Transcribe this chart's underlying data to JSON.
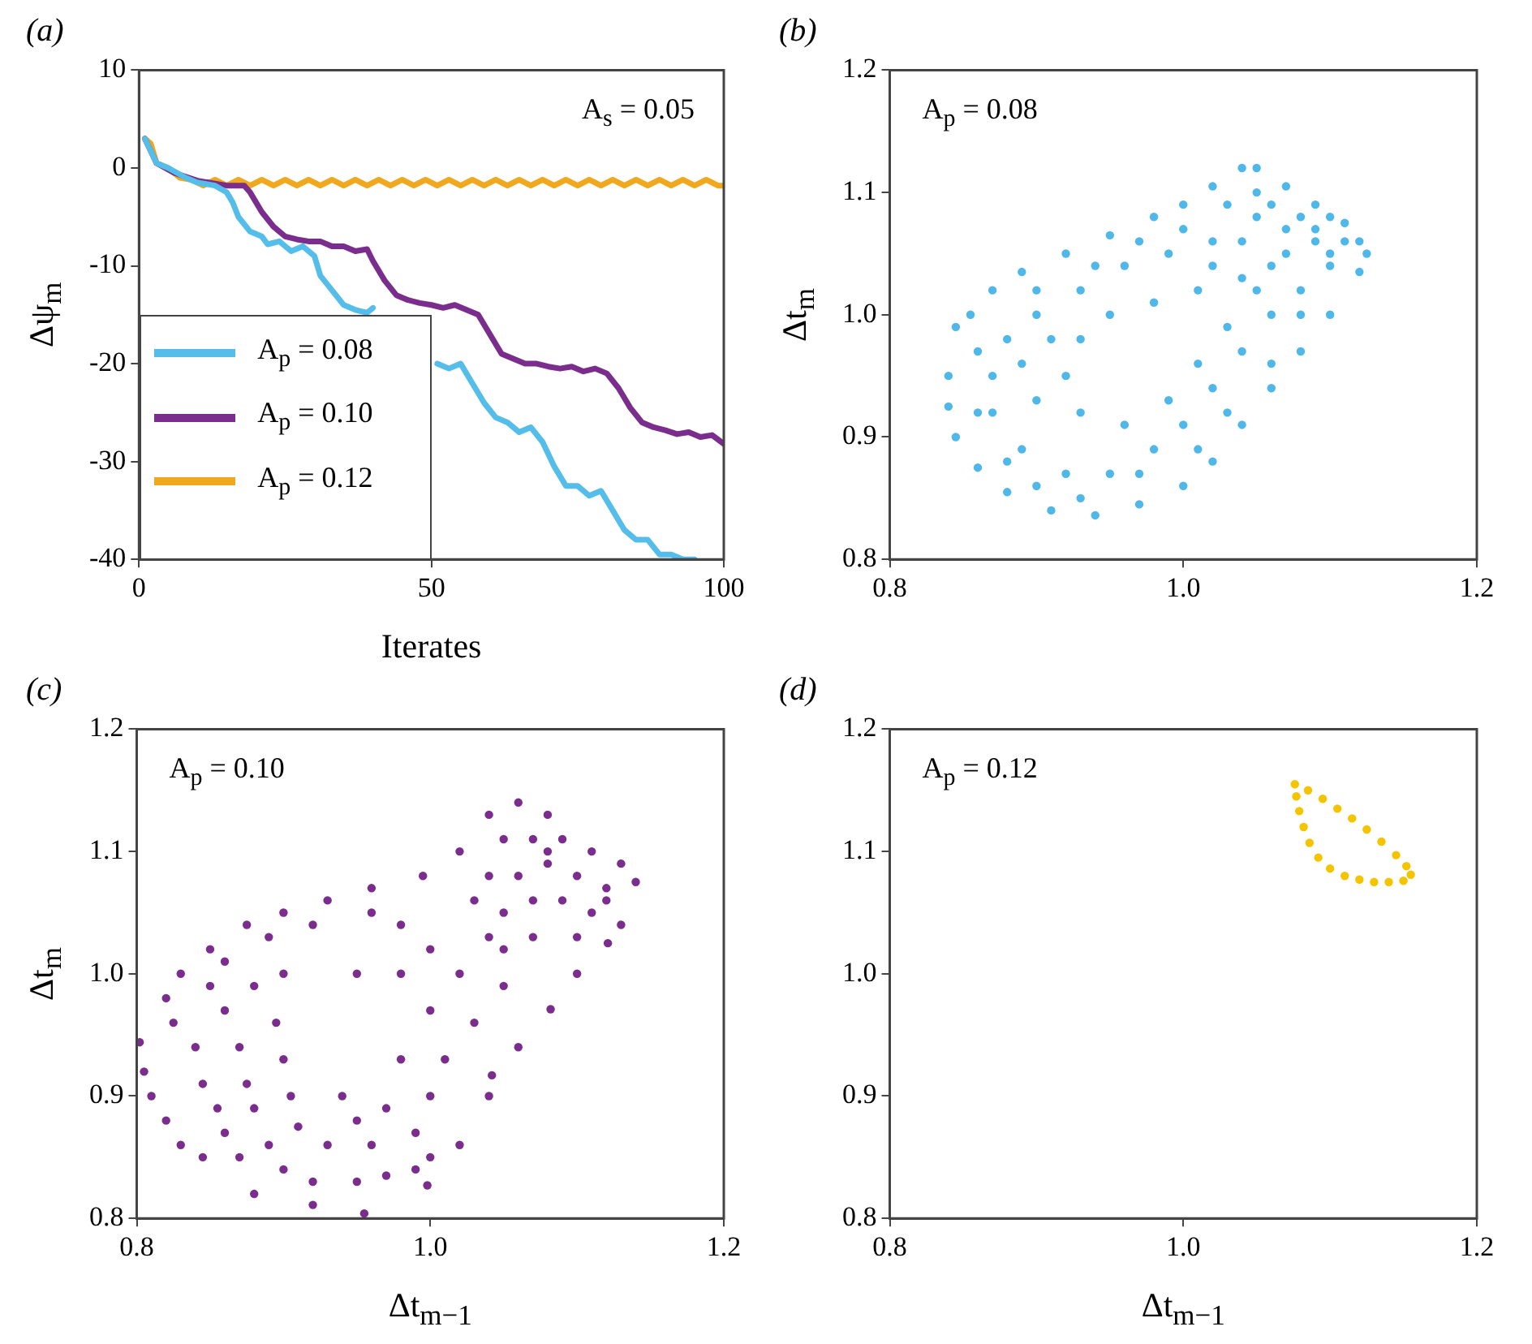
{
  "chart_data": [
    {
      "type": "line",
      "title": "(a)",
      "xlabel": "Iterates",
      "ylabel": "Δψ$_{m}$",
      "annotations": [
        "A$_{s}$ = 0.05"
      ],
      "xlim": [
        0,
        100
      ],
      "xticks": [
        0,
        50,
        100
      ],
      "ylim": [
        -40,
        10
      ],
      "yticks": [
        -40,
        -30,
        -20,
        -10,
        0,
        10
      ],
      "legend": "bottom left",
      "series": [
        {
          "name": "A$_{p}$ = 0.08",
          "color": "#55bde9",
          "x": [
            1,
            3,
            5,
            8,
            10,
            13,
            15,
            16,
            17,
            19,
            21,
            22,
            24,
            26,
            28,
            30,
            31,
            33,
            35,
            37,
            39,
            40,
            42,
            45,
            48,
            51,
            53,
            55,
            57,
            59,
            61,
            63,
            65,
            67,
            69,
            71,
            73,
            75,
            77,
            79,
            81,
            83,
            85,
            87,
            89,
            91,
            93,
            95
          ],
          "values": [
            3,
            0.5,
            0,
            -1,
            -1.5,
            -1.8,
            -2.5,
            -3.5,
            -5,
            -6.5,
            -7,
            -7.8,
            -7.5,
            -8.5,
            -8,
            -9,
            -11,
            -12.5,
            -14,
            -14.5,
            -14.8,
            -14.3,
            null,
            null,
            null,
            -20,
            -20.5,
            -20,
            -22,
            -24,
            -25.5,
            -26,
            -27,
            -26.5,
            -28,
            -30.5,
            -32.5,
            -32.5,
            -33.5,
            -33,
            -35,
            -37,
            -38,
            -38,
            -39.5,
            -39.5,
            -40,
            -40
          ]
        },
        {
          "name": "A$_{p}$ = 0.10",
          "color": "#7b2d8e",
          "x": [
            1,
            3,
            6,
            10,
            15,
            18,
            19,
            21,
            23,
            25,
            27,
            29,
            31,
            33,
            35,
            37,
            39,
            40,
            42,
            44,
            46,
            48,
            50,
            52,
            54,
            56,
            58,
            60,
            62,
            64,
            66,
            68,
            70,
            72,
            74,
            76,
            78,
            80,
            82,
            84,
            86,
            88,
            90,
            92,
            94,
            96,
            98,
            100
          ],
          "values": [
            3,
            0.5,
            -0.5,
            -1.3,
            -1.8,
            -1.8,
            -2.5,
            -4.5,
            -6,
            -7,
            -7.3,
            -7.5,
            -7.5,
            -8,
            -8,
            -8.5,
            -8.3,
            -9.5,
            -11.5,
            -13,
            -13.5,
            -13.8,
            -14,
            -14.3,
            -14,
            -14.5,
            -15,
            -17,
            -19,
            -19.5,
            -20,
            -20,
            -20.3,
            -20.5,
            -20.3,
            -20.8,
            -20.5,
            -21,
            -22.5,
            -24.5,
            -26,
            -26.5,
            -26.8,
            -27.2,
            -27,
            -27.5,
            -27.3,
            -28.2
          ]
        },
        {
          "name": "A$_{p}$ = 0.12",
          "color": "#f0a81e",
          "x": [
            1,
            2,
            3,
            5,
            7,
            9,
            11,
            13,
            15,
            17,
            19,
            21,
            23,
            25,
            27,
            29,
            31,
            33,
            35,
            37,
            39,
            41,
            43,
            45,
            47,
            49,
            51,
            53,
            55,
            57,
            59,
            61,
            63,
            65,
            67,
            69,
            71,
            73,
            75,
            77,
            79,
            81,
            83,
            85,
            87,
            89,
            91,
            93,
            95,
            97,
            99,
            100
          ],
          "values": [
            3,
            2.5,
            0.5,
            0,
            -1,
            -1.2,
            -1.8,
            -1.2,
            -1.8,
            -1.2,
            -1.8,
            -1.2,
            -1.8,
            -1.2,
            -1.8,
            -1.2,
            -1.8,
            -1.2,
            -1.8,
            -1.2,
            -1.8,
            -1.2,
            -1.8,
            -1.2,
            -1.8,
            -1.2,
            -1.8,
            -1.2,
            -1.8,
            -1.2,
            -1.8,
            -1.2,
            -1.8,
            -1.2,
            -1.8,
            -1.2,
            -1.8,
            -1.2,
            -1.8,
            -1.2,
            -1.8,
            -1.2,
            -1.8,
            -1.2,
            -1.8,
            -1.2,
            -1.8,
            -1.2,
            -1.8,
            -1.2,
            -1.8,
            -1.8
          ]
        }
      ]
    },
    {
      "type": "scatter",
      "title": "(b)",
      "ylabel": "Δt$_{m}$",
      "annotations": [
        "A$_{p}$ = 0.08"
      ],
      "marker": "circle",
      "xlim": [
        0.8,
        1.2
      ],
      "xticks": [
        {
          "value": 0.8,
          "label": "0.8"
        },
        {
          "value": 1,
          "label": "1.0"
        },
        {
          "value": 1.2,
          "label": "1.2"
        }
      ],
      "ylim": [
        0.8,
        1.2
      ],
      "yticks": [
        {
          "value": 0.8,
          "label": "0.8"
        },
        {
          "value": 0.9,
          "label": "0.9"
        },
        {
          "value": 1,
          "label": "1.0"
        },
        {
          "value": 1.1,
          "label": "1.1"
        },
        {
          "value": 1.2,
          "label": "1.2"
        }
      ],
      "series": [
        {
          "color": "#4fb8e8",
          "x": [
            0.84,
            0.845,
            0.855,
            0.87,
            0.89,
            0.92,
            0.95,
            0.98,
            1.0,
            1.02,
            1.04,
            1.05,
            1.07,
            1.09,
            1.11,
            1.12,
            1.125,
            1.12,
            1.1,
            1.08,
            1.06,
            1.04,
            1.02,
            1.0,
            0.97,
            0.94,
            0.91,
            0.88,
            0.86,
            0.845,
            0.84,
            0.87,
            0.88,
            0.9,
            0.93,
            0.96,
            0.99,
            1.02,
            1.05,
            1.07,
            1.09,
            1.1,
            1.08,
            1.06,
            1.04,
            1.02,
            1.0,
            0.98,
            0.95,
            0.92,
            0.89,
            0.87,
            0.92,
            0.93,
            0.95,
            0.98,
            1.01,
            1.04,
            1.06,
            1.03,
            1.01,
            0.99,
            0.96,
            0.93,
            0.9,
            1.03,
            1.05,
            1.06,
            1.08,
            1.04,
            1.07,
            1.09,
            1.1,
            1.11,
            1.1,
            1.02,
            1.0,
            0.97,
            0.94,
            0.9,
            0.86,
            0.89,
            0.91,
            1.05,
            1.08,
            1.06,
            1.03,
            1.01,
            0.97,
            0.93,
            0.9,
            0.88,
            0.86
          ],
          "values": [
            0.95,
            0.99,
            1.0,
            1.02,
            1.035,
            1.05,
            1.065,
            1.08,
            1.09,
            1.105,
            1.12,
            1.12,
            1.105,
            1.09,
            1.075,
            1.06,
            1.05,
            1.035,
            1.0,
            0.97,
            0.94,
            0.91,
            0.88,
            0.86,
            0.845,
            0.836,
            0.84,
            0.855,
            0.875,
            0.9,
            0.925,
            0.95,
            0.98,
            1.0,
            1.02,
            1.04,
            1.05,
            1.06,
            1.08,
            1.07,
            1.06,
            1.04,
            1.02,
            1.0,
            0.97,
            0.94,
            0.91,
            0.89,
            0.87,
            0.87,
            0.89,
            0.92,
            0.95,
            0.98,
            1.0,
            1.01,
            1.02,
            1.03,
            1.04,
            0.99,
            0.96,
            0.93,
            0.91,
            0.92,
            0.93,
            1.09,
            1.1,
            1.09,
            1.08,
            1.06,
            1.05,
            1.07,
            1.05,
            1.06,
            1.08,
            1.04,
            1.07,
            1.06,
            1.04,
            1.02,
            0.97,
            0.96,
            0.98,
            1.02,
            1.0,
            0.96,
            0.92,
            0.89,
            0.87,
            0.85,
            0.86,
            0.88,
            0.92
          ]
        }
      ]
    },
    {
      "type": "scatter",
      "title": "(c)",
      "xlabel": "Δt$_{m−1}$",
      "ylabel": "Δt$_{m}$",
      "annotations": [
        "A$_{p}$ = 0.10"
      ],
      "marker": "circle",
      "xlim": [
        0.8,
        1.2
      ],
      "xticks": [
        {
          "value": 0.8,
          "label": "0.8"
        },
        {
          "value": 1,
          "label": "1.0"
        },
        {
          "value": 1.2,
          "label": "1.2"
        }
      ],
      "ylim": [
        0.8,
        1.2
      ],
      "yticks": [
        {
          "value": 0.8,
          "label": "0.8"
        },
        {
          "value": 0.9,
          "label": "0.9"
        },
        {
          "value": 1,
          "label": "1.0"
        },
        {
          "value": 1.1,
          "label": "1.1"
        },
        {
          "value": 1.2,
          "label": "1.2"
        }
      ],
      "series": [
        {
          "color": "#7b2d8e",
          "x": [
            1.06,
            1.04,
            1.08,
            1.02,
            1.05,
            1.07,
            1.09,
            1.11,
            1.13,
            1.14,
            1.12,
            1.1,
            1.08,
            1.06,
            1.04,
            1.03,
            1.05,
            1.07,
            1.09,
            1.11,
            1.13,
            1.1,
            1.07,
            1.05,
            1.08,
            1.12,
            0.995,
            0.96,
            0.93,
            0.9,
            0.875,
            0.85,
            0.83,
            0.82,
            0.96,
            0.92,
            0.89,
            0.86,
            0.98,
            0.95,
            0.9,
            0.88,
            0.802,
            0.805,
            0.81,
            0.82,
            0.83,
            0.845,
            0.825,
            0.84,
            0.845,
            0.855,
            0.86,
            0.87,
            0.875,
            0.88,
            0.895,
            0.9,
            0.905,
            0.85,
            0.87,
            0.9,
            0.92,
            0.95,
            0.97,
            0.99,
            0.92,
            0.955,
            0.998,
            0.89,
            0.93,
            0.96,
            0.99,
            0.91,
            0.95,
            0.97,
            0.94,
            0.86,
            0.88,
            1.0,
            1.02,
            1.04,
            1.042,
            1.06,
            1.082,
            1.1,
            1.121,
            1.0,
            1.01,
            1.03,
            1.05,
            1.02,
            1.0,
            0.98,
            1.04,
            1.0,
            0.98
          ],
          "values": [
            1.14,
            1.13,
            1.13,
            1.1,
            1.11,
            1.11,
            1.11,
            1.1,
            1.09,
            1.075,
            1.07,
            1.08,
            1.09,
            1.08,
            1.08,
            1.06,
            1.05,
            1.06,
            1.06,
            1.05,
            1.04,
            1.03,
            1.03,
            1.02,
            1.1,
            1.06,
            1.08,
            1.07,
            1.06,
            1.05,
            1.04,
            1.02,
            1.0,
            0.98,
            1.05,
            1.04,
            1.03,
            1.01,
            1.04,
            1.0,
            1.0,
            0.99,
            0.944,
            0.92,
            0.9,
            0.88,
            0.86,
            0.85,
            0.96,
            0.94,
            0.91,
            0.89,
            0.97,
            0.94,
            0.91,
            0.89,
            0.96,
            0.93,
            0.9,
            0.99,
            0.85,
            0.84,
            0.83,
            0.83,
            0.835,
            0.84,
            0.811,
            0.804,
            0.827,
            0.86,
            0.86,
            0.86,
            0.87,
            0.875,
            0.88,
            0.89,
            0.9,
            0.87,
            0.82,
            0.85,
            0.86,
            0.9,
            0.917,
            0.94,
            0.971,
            1.0,
            1.025,
            0.9,
            0.93,
            0.96,
            0.99,
            1.0,
            0.97,
            0.93,
            1.03,
            1.02,
            1.0
          ]
        }
      ]
    },
    {
      "type": "scatter",
      "title": "(d)",
      "xlabel": "Δt$_{m−1}$",
      "annotations": [
        "A$_{p}$ = 0.12"
      ],
      "marker": "circle",
      "xlim": [
        0.8,
        1.2
      ],
      "xticks": [
        {
          "value": 0.8,
          "label": "0.8"
        },
        {
          "value": 1,
          "label": "1.0"
        },
        {
          "value": 1.2,
          "label": "1.2"
        }
      ],
      "ylim": [
        0.8,
        1.2
      ],
      "yticks": [
        {
          "value": 0.8,
          "label": "0.8"
        },
        {
          "value": 0.9,
          "label": "0.9"
        },
        {
          "value": 1,
          "label": "1.0"
        },
        {
          "value": 1.1,
          "label": "1.1"
        },
        {
          "value": 1.2,
          "label": "1.2"
        }
      ],
      "series": [
        {
          "color": "#f5c400",
          "x": [
            1.076,
            1.085,
            1.095,
            1.105,
            1.115,
            1.125,
            1.135,
            1.145,
            1.152,
            1.155,
            1.15,
            1.14,
            1.13,
            1.12,
            1.11,
            1.1,
            1.092,
            1.086,
            1.082,
            1.079,
            1.077
          ],
          "values": [
            1.155,
            1.15,
            1.143,
            1.135,
            1.127,
            1.118,
            1.108,
            1.097,
            1.088,
            1.081,
            1.076,
            1.075,
            1.075,
            1.077,
            1.08,
            1.086,
            1.095,
            1.107,
            1.12,
            1.133,
            1.145
          ]
        }
      ]
    }
  ]
}
